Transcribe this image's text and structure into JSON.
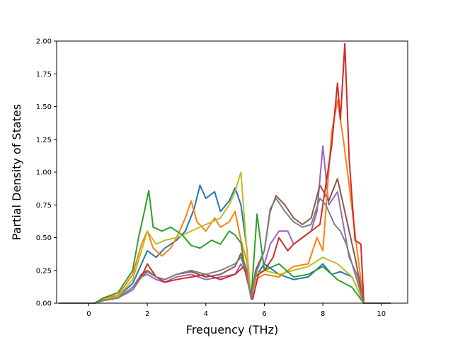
{
  "chart_data": {
    "type": "line",
    "title": "",
    "xlabel": "Frequency (THz)",
    "ylabel": "Partial Density of States",
    "xlim": [
      -1.1,
      10.9
    ],
    "ylim": [
      0.0,
      2.0
    ],
    "xticks": [
      0,
      2,
      4,
      6,
      8,
      10
    ],
    "yticks": [
      0.0,
      0.25,
      0.5,
      0.75,
      1.0,
      1.25,
      1.5,
      1.75,
      2.0
    ],
    "xtick_labels": [
      "0",
      "2",
      "4",
      "6",
      "8",
      "10"
    ],
    "ytick_labels": [
      "0.00",
      "0.25",
      "0.50",
      "0.75",
      "1.00",
      "1.25",
      "1.50",
      "1.75",
      "2.00"
    ],
    "grid": false,
    "legend": "none",
    "series": [
      {
        "color": "#9467bd",
        "points": [
          [
            -1.0,
            0
          ],
          [
            0.2,
            0
          ],
          [
            0.5,
            0.02
          ],
          [
            1.0,
            0.04
          ],
          [
            1.5,
            0.1
          ],
          [
            1.8,
            0.2
          ],
          [
            2.0,
            0.22
          ],
          [
            2.3,
            0.18
          ],
          [
            2.6,
            0.16
          ],
          [
            3.0,
            0.2
          ],
          [
            3.5,
            0.22
          ],
          [
            4.0,
            0.18
          ],
          [
            4.5,
            0.2
          ],
          [
            5.0,
            0.22
          ],
          [
            5.2,
            0.3
          ],
          [
            5.4,
            0.22
          ],
          [
            5.55,
            0.03
          ],
          [
            5.7,
            0.2
          ],
          [
            6.0,
            0.3
          ],
          [
            6.2,
            0.45
          ],
          [
            6.5,
            0.55
          ],
          [
            6.8,
            0.55
          ],
          [
            7.0,
            0.45
          ],
          [
            7.3,
            0.5
          ],
          [
            7.6,
            0.55
          ],
          [
            7.8,
            0.7
          ],
          [
            8.0,
            1.2
          ],
          [
            8.2,
            0.75
          ],
          [
            8.5,
            0.85
          ],
          [
            8.7,
            0.6
          ],
          [
            8.9,
            0.35
          ],
          [
            9.2,
            0.2
          ],
          [
            9.4,
            0
          ],
          [
            10.3,
            0
          ]
        ]
      },
      {
        "color": "#8c564b",
        "points": [
          [
            -1.0,
            0
          ],
          [
            0.2,
            0
          ],
          [
            0.5,
            0.02
          ],
          [
            1.0,
            0.04
          ],
          [
            1.5,
            0.12
          ],
          [
            1.8,
            0.22
          ],
          [
            2.0,
            0.25
          ],
          [
            2.3,
            0.2
          ],
          [
            2.6,
            0.18
          ],
          [
            3.0,
            0.22
          ],
          [
            3.5,
            0.24
          ],
          [
            4.0,
            0.2
          ],
          [
            4.5,
            0.22
          ],
          [
            5.0,
            0.28
          ],
          [
            5.2,
            0.38
          ],
          [
            5.4,
            0.25
          ],
          [
            5.55,
            0.04
          ],
          [
            5.7,
            0.25
          ],
          [
            6.0,
            0.4
          ],
          [
            6.2,
            0.7
          ],
          [
            6.4,
            0.82
          ],
          [
            6.7,
            0.75
          ],
          [
            7.0,
            0.65
          ],
          [
            7.3,
            0.6
          ],
          [
            7.6,
            0.65
          ],
          [
            7.9,
            0.9
          ],
          [
            8.2,
            0.78
          ],
          [
            8.5,
            0.95
          ],
          [
            8.7,
            0.75
          ],
          [
            8.9,
            0.55
          ],
          [
            9.1,
            0.35
          ],
          [
            9.4,
            0
          ],
          [
            10.3,
            0
          ]
        ]
      },
      {
        "color": "#1f77b4",
        "points": [
          [
            -1.0,
            0
          ],
          [
            0.2,
            0
          ],
          [
            0.5,
            0.03
          ],
          [
            1.0,
            0.05
          ],
          [
            1.5,
            0.15
          ],
          [
            1.8,
            0.3
          ],
          [
            2.0,
            0.4
          ],
          [
            2.3,
            0.35
          ],
          [
            2.6,
            0.42
          ],
          [
            3.0,
            0.48
          ],
          [
            3.3,
            0.55
          ],
          [
            3.6,
            0.72
          ],
          [
            3.8,
            0.9
          ],
          [
            4.0,
            0.8
          ],
          [
            4.3,
            0.85
          ],
          [
            4.5,
            0.7
          ],
          [
            4.8,
            0.78
          ],
          [
            5.0,
            0.88
          ],
          [
            5.2,
            0.75
          ],
          [
            5.4,
            0.42
          ],
          [
            5.55,
            0.03
          ],
          [
            5.7,
            0.2
          ],
          [
            6.0,
            0.3
          ],
          [
            6.5,
            0.22
          ],
          [
            7.0,
            0.18
          ],
          [
            7.5,
            0.2
          ],
          [
            8.0,
            0.3
          ],
          [
            8.3,
            0.22
          ],
          [
            8.6,
            0.24
          ],
          [
            9.0,
            0.2
          ],
          [
            9.4,
            0
          ],
          [
            10.3,
            0
          ]
        ]
      },
      {
        "color": "#ff7f0e",
        "points": [
          [
            -1.0,
            0
          ],
          [
            0.2,
            0
          ],
          [
            0.5,
            0.04
          ],
          [
            1.0,
            0.06
          ],
          [
            1.5,
            0.22
          ],
          [
            1.8,
            0.45
          ],
          [
            2.0,
            0.55
          ],
          [
            2.2,
            0.42
          ],
          [
            2.5,
            0.36
          ],
          [
            2.8,
            0.42
          ],
          [
            3.0,
            0.5
          ],
          [
            3.3,
            0.65
          ],
          [
            3.5,
            0.78
          ],
          [
            3.7,
            0.62
          ],
          [
            4.0,
            0.55
          ],
          [
            4.3,
            0.65
          ],
          [
            4.5,
            0.58
          ],
          [
            4.8,
            0.62
          ],
          [
            5.0,
            0.7
          ],
          [
            5.2,
            0.48
          ],
          [
            5.4,
            0.32
          ],
          [
            5.55,
            0.04
          ],
          [
            5.7,
            0.18
          ],
          [
            6.0,
            0.22
          ],
          [
            6.5,
            0.2
          ],
          [
            7.0,
            0.28
          ],
          [
            7.5,
            0.3
          ],
          [
            7.8,
            0.5
          ],
          [
            8.0,
            0.4
          ],
          [
            8.3,
            1.3
          ],
          [
            8.5,
            1.55
          ],
          [
            8.7,
            1.25
          ],
          [
            8.9,
            0.9
          ],
          [
            9.2,
            0.35
          ],
          [
            9.4,
            0
          ],
          [
            10.3,
            0
          ]
        ]
      },
      {
        "color": "#bcbd22",
        "points": [
          [
            -1.0,
            0
          ],
          [
            0.2,
            0
          ],
          [
            0.5,
            0.03
          ],
          [
            1.0,
            0.05
          ],
          [
            1.5,
            0.18
          ],
          [
            1.8,
            0.4
          ],
          [
            2.0,
            0.55
          ],
          [
            2.3,
            0.45
          ],
          [
            2.6,
            0.48
          ],
          [
            3.0,
            0.5
          ],
          [
            3.5,
            0.55
          ],
          [
            4.0,
            0.6
          ],
          [
            4.5,
            0.65
          ],
          [
            4.8,
            0.75
          ],
          [
            5.0,
            0.85
          ],
          [
            5.2,
            1.0
          ],
          [
            5.3,
            0.7
          ],
          [
            5.4,
            0.4
          ],
          [
            5.55,
            0.04
          ],
          [
            5.7,
            0.22
          ],
          [
            6.0,
            0.25
          ],
          [
            6.5,
            0.22
          ],
          [
            7.0,
            0.25
          ],
          [
            7.5,
            0.28
          ],
          [
            8.0,
            0.35
          ],
          [
            8.5,
            0.3
          ],
          [
            9.0,
            0.2
          ],
          [
            9.4,
            0
          ],
          [
            10.3,
            0
          ]
        ]
      },
      {
        "color": "#2ca02c",
        "points": [
          [
            -1.0,
            0
          ],
          [
            0.2,
            0
          ],
          [
            0.5,
            0.04
          ],
          [
            1.0,
            0.08
          ],
          [
            1.5,
            0.25
          ],
          [
            1.7,
            0.5
          ],
          [
            1.9,
            0.7
          ],
          [
            2.05,
            0.86
          ],
          [
            2.2,
            0.58
          ],
          [
            2.5,
            0.55
          ],
          [
            2.8,
            0.58
          ],
          [
            3.2,
            0.52
          ],
          [
            3.5,
            0.44
          ],
          [
            3.8,
            0.42
          ],
          [
            4.2,
            0.48
          ],
          [
            4.5,
            0.45
          ],
          [
            4.8,
            0.55
          ],
          [
            5.0,
            0.52
          ],
          [
            5.2,
            0.46
          ],
          [
            5.35,
            0.25
          ],
          [
            5.55,
            0.04
          ],
          [
            5.75,
            0.68
          ],
          [
            6.0,
            0.25
          ],
          [
            6.5,
            0.3
          ],
          [
            7.0,
            0.2
          ],
          [
            7.5,
            0.22
          ],
          [
            8.0,
            0.28
          ],
          [
            8.5,
            0.18
          ],
          [
            9.0,
            0.12
          ],
          [
            9.4,
            0
          ],
          [
            10.3,
            0
          ]
        ]
      },
      {
        "color": "#d62728",
        "points": [
          [
            -1.0,
            0
          ],
          [
            0.2,
            0
          ],
          [
            0.5,
            0.02
          ],
          [
            1.0,
            0.04
          ],
          [
            1.5,
            0.12
          ],
          [
            1.8,
            0.2
          ],
          [
            2.0,
            0.3
          ],
          [
            2.3,
            0.2
          ],
          [
            2.6,
            0.16
          ],
          [
            3.0,
            0.18
          ],
          [
            3.5,
            0.2
          ],
          [
            4.0,
            0.22
          ],
          [
            4.5,
            0.18
          ],
          [
            5.0,
            0.22
          ],
          [
            5.3,
            0.28
          ],
          [
            5.5,
            0.1
          ],
          [
            5.6,
            0.03
          ],
          [
            5.8,
            0.22
          ],
          [
            6.0,
            0.25
          ],
          [
            6.3,
            0.35
          ],
          [
            6.5,
            0.5
          ],
          [
            6.8,
            0.4
          ],
          [
            7.0,
            0.45
          ],
          [
            7.3,
            0.5
          ],
          [
            7.6,
            0.55
          ],
          [
            7.9,
            0.6
          ],
          [
            8.1,
            0.9
          ],
          [
            8.3,
            1.2
          ],
          [
            8.5,
            1.68
          ],
          [
            8.6,
            1.4
          ],
          [
            8.75,
            1.98
          ],
          [
            8.9,
            1.1
          ],
          [
            9.1,
            0.48
          ],
          [
            9.3,
            0.45
          ],
          [
            9.4,
            0
          ],
          [
            10.3,
            0
          ]
        ]
      },
      {
        "color": "#7f7f7f",
        "points": [
          [
            -1.0,
            0
          ],
          [
            0.2,
            0
          ],
          [
            0.5,
            0.02
          ],
          [
            1.0,
            0.04
          ],
          [
            1.5,
            0.12
          ],
          [
            1.8,
            0.2
          ],
          [
            2.0,
            0.24
          ],
          [
            2.3,
            0.2
          ],
          [
            2.6,
            0.18
          ],
          [
            3.0,
            0.22
          ],
          [
            3.5,
            0.25
          ],
          [
            4.0,
            0.22
          ],
          [
            4.5,
            0.25
          ],
          [
            5.0,
            0.3
          ],
          [
            5.2,
            0.35
          ],
          [
            5.4,
            0.22
          ],
          [
            5.55,
            0.04
          ],
          [
            5.7,
            0.22
          ],
          [
            6.0,
            0.4
          ],
          [
            6.2,
            0.72
          ],
          [
            6.4,
            0.8
          ],
          [
            6.7,
            0.7
          ],
          [
            7.0,
            0.62
          ],
          [
            7.3,
            0.58
          ],
          [
            7.6,
            0.6
          ],
          [
            7.9,
            0.8
          ],
          [
            8.1,
            0.75
          ],
          [
            8.4,
            0.6
          ],
          [
            8.6,
            0.55
          ],
          [
            8.8,
            0.45
          ],
          [
            9.0,
            0.3
          ],
          [
            9.4,
            0
          ],
          [
            10.3,
            0
          ]
        ]
      }
    ]
  }
}
